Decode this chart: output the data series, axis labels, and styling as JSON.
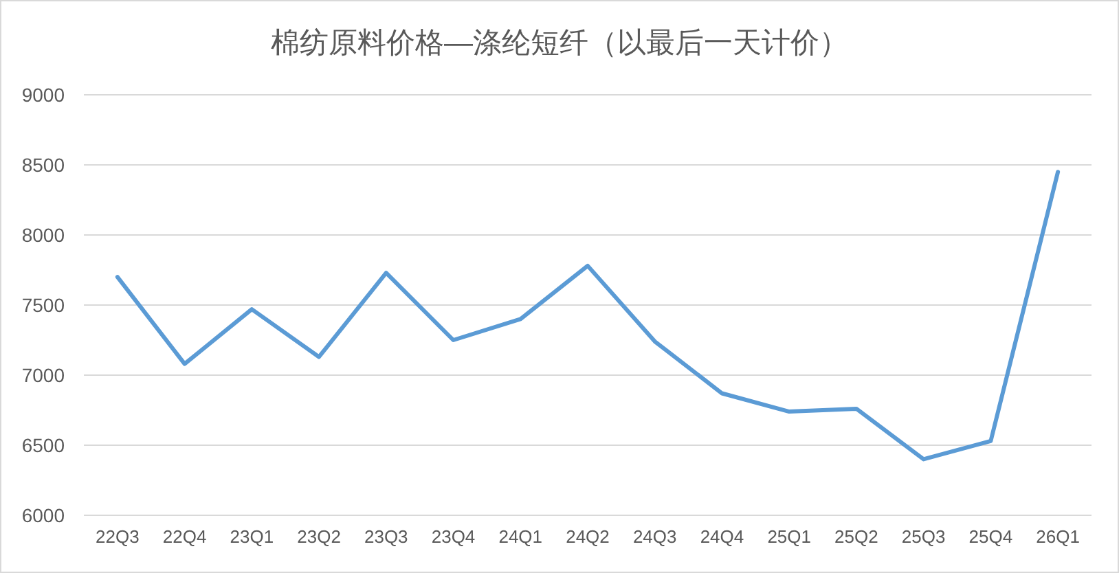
{
  "chart_data": {
    "type": "line",
    "title": "棉纺原料价格—涤纶短纤（以最后一天计价）",
    "categories": [
      "22Q3",
      "22Q4",
      "23Q1",
      "23Q2",
      "23Q3",
      "23Q4",
      "24Q1",
      "24Q2",
      "24Q3",
      "24Q4",
      "25Q1",
      "25Q2",
      "25Q3",
      "25Q4",
      "26Q1"
    ],
    "series": [
      {
        "color": "#5b9bd5",
        "values": [
          7700,
          7080,
          7470,
          7130,
          7730,
          7250,
          7400,
          7780,
          7240,
          6870,
          6740,
          6760,
          6400,
          6530,
          8450
        ]
      }
    ],
    "ylim": [
      6000,
      9000
    ],
    "yticks": [
      6000,
      6500,
      7000,
      7500,
      8000,
      8500,
      9000
    ],
    "grid": "y"
  }
}
